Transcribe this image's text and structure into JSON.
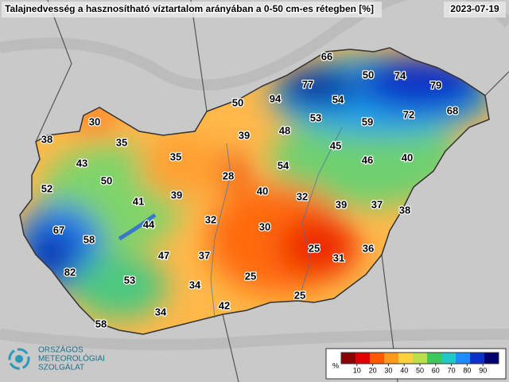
{
  "header": {
    "title": "Talajnedvesség a hasznosítható víztartalom arányában a 0-50 cm-es rétegben [%]",
    "date": "2023-07-19"
  },
  "station_values": [
    66,
    50,
    74,
    79,
    77,
    94,
    54,
    50,
    72,
    68,
    53,
    59,
    30,
    48,
    39,
    38,
    35,
    45,
    35,
    40,
    46,
    43,
    54,
    28,
    50,
    52,
    40,
    41,
    39,
    32,
    39,
    37,
    38,
    30,
    32,
    44,
    67,
    58,
    25,
    36,
    47,
    37,
    31,
    82,
    53,
    25,
    34,
    25,
    42,
    34,
    58
  ],
  "legend": {
    "unit": "%",
    "range": [
      0,
      100
    ],
    "ticks": [
      10,
      20,
      30,
      40,
      50,
      60,
      70,
      80,
      90
    ],
    "colors": [
      "#8b0000",
      "#e00000",
      "#ff5a00",
      "#ff9a1a",
      "#ffd23c",
      "#b8e04a",
      "#3cc85a",
      "#20c8c8",
      "#1e8cff",
      "#0a32c8",
      "#00006e"
    ]
  },
  "logo": {
    "lines": [
      "ORSZÁGOS",
      "METEOROLÓGIAI",
      "SZOLGÁLAT"
    ]
  }
}
